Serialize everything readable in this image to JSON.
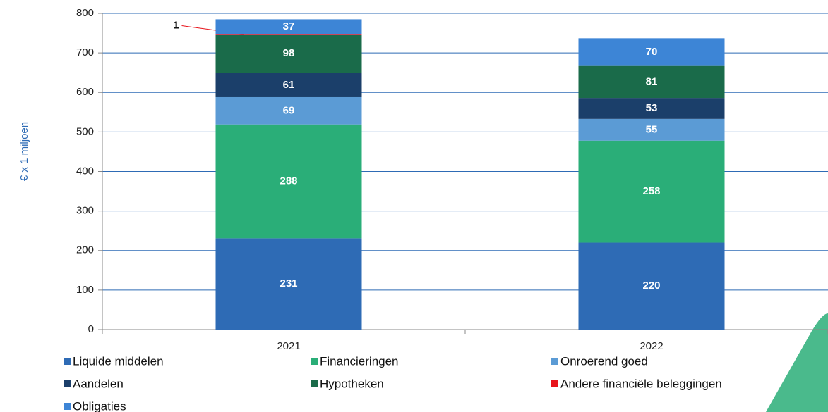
{
  "chart_data": {
    "type": "stacked_bar",
    "y_axis_label": "€ x 1 miljoen",
    "categories": [
      "2021",
      "2022"
    ],
    "ylim": [
      0,
      800
    ],
    "yticks": [
      0,
      100,
      200,
      300,
      400,
      500,
      600,
      700,
      800
    ],
    "grid": true,
    "series": [
      {
        "name": "Liquide middelen",
        "color": "#2e6bb5",
        "values": [
          231,
          220
        ]
      },
      {
        "name": "Financieringen",
        "color": "#2aae78",
        "values": [
          288,
          258
        ]
      },
      {
        "name": "Onroerend goed",
        "color": "#5b9bd5",
        "values": [
          69,
          55
        ]
      },
      {
        "name": "Aandelen",
        "color": "#1b3f6a",
        "values": [
          61,
          53
        ]
      },
      {
        "name": "Hypotheken",
        "color": "#1a6b4a",
        "values": [
          98,
          81
        ]
      },
      {
        "name": "Andere financiële beleggingen",
        "color": "#e8141b",
        "values": [
          1,
          null
        ]
      },
      {
        "name": "Obligaties",
        "color": "#3d85d6",
        "values": [
          37,
          70
        ]
      }
    ]
  }
}
